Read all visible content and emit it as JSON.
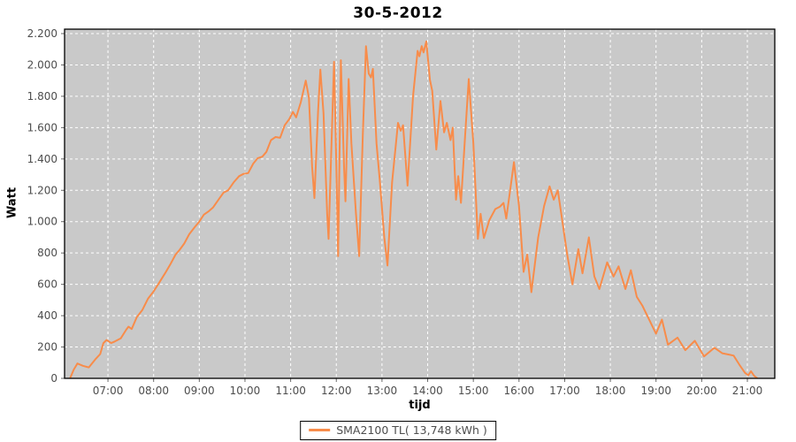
{
  "title": "30-5-2012",
  "axes": {
    "x_label": "tijd",
    "y_label": "Watt"
  },
  "legend": {
    "label": "SMA2100 TL( 13,748 kWh )"
  },
  "colors": {
    "page_bg": "#ffffff",
    "plot_bg": "#c9c9c9",
    "grid": "#ffffff",
    "series": "#f88c4a",
    "plot_border": "#000000",
    "tick_mark": "#666666",
    "tick_text": "#4d4d4d",
    "title_text": "#000000"
  },
  "chart_data": {
    "type": "line",
    "title": "30-5-2012",
    "xlabel": "tijd",
    "ylabel": "Watt",
    "xlim": [
      6.05,
      21.6
    ],
    "ylim": [
      0,
      2200
    ],
    "grid": true,
    "grid_style": "dashed-white",
    "legend_position": "bottom-center",
    "x_ticks": [
      {
        "value": 7,
        "label": "07:00"
      },
      {
        "value": 8,
        "label": "08:00"
      },
      {
        "value": 9,
        "label": "09:00"
      },
      {
        "value": 10,
        "label": "10:00"
      },
      {
        "value": 11,
        "label": "11:00"
      },
      {
        "value": 12,
        "label": "12:00"
      },
      {
        "value": 13,
        "label": "13:00"
      },
      {
        "value": 14,
        "label": "14:00"
      },
      {
        "value": 15,
        "label": "15:00"
      },
      {
        "value": 16,
        "label": "16:00"
      },
      {
        "value": 17,
        "label": "17:00"
      },
      {
        "value": 18,
        "label": "18:00"
      },
      {
        "value": 19,
        "label": "19:00"
      },
      {
        "value": 20,
        "label": "20:00"
      },
      {
        "value": 21,
        "label": "21:00"
      }
    ],
    "y_ticks": [
      {
        "value": 0,
        "label": "0"
      },
      {
        "value": 200,
        "label": "200"
      },
      {
        "value": 400,
        "label": "400"
      },
      {
        "value": 600,
        "label": "600"
      },
      {
        "value": 800,
        "label": "800"
      },
      {
        "value": 1000,
        "label": "1.000"
      },
      {
        "value": 1200,
        "label": "1.200"
      },
      {
        "value": 1400,
        "label": "1.400"
      },
      {
        "value": 1600,
        "label": "1.600"
      },
      {
        "value": 1800,
        "label": "1.800"
      },
      {
        "value": 2000,
        "label": "2.000"
      },
      {
        "value": 2200,
        "label": "2.200"
      }
    ],
    "series": [
      {
        "name": "SMA2100 TL( 13,748 kWh )",
        "color": "#f88c4a",
        "points": [
          [
            6.17,
            0
          ],
          [
            6.25,
            55
          ],
          [
            6.33,
            95
          ],
          [
            6.45,
            80
          ],
          [
            6.58,
            70
          ],
          [
            6.72,
            120
          ],
          [
            6.83,
            155
          ],
          [
            6.9,
            225
          ],
          [
            6.97,
            245
          ],
          [
            7.07,
            225
          ],
          [
            7.15,
            235
          ],
          [
            7.28,
            255
          ],
          [
            7.4,
            310
          ],
          [
            7.45,
            330
          ],
          [
            7.52,
            315
          ],
          [
            7.63,
            390
          ],
          [
            7.75,
            435
          ],
          [
            7.88,
            510
          ],
          [
            8,
            555
          ],
          [
            8.12,
            610
          ],
          [
            8.25,
            670
          ],
          [
            8.37,
            730
          ],
          [
            8.48,
            790
          ],
          [
            8.57,
            820
          ],
          [
            8.67,
            860
          ],
          [
            8.78,
            920
          ],
          [
            8.9,
            965
          ],
          [
            9,
            1000
          ],
          [
            9.1,
            1045
          ],
          [
            9.2,
            1065
          ],
          [
            9.3,
            1090
          ],
          [
            9.42,
            1140
          ],
          [
            9.53,
            1185
          ],
          [
            9.63,
            1200
          ],
          [
            9.75,
            1250
          ],
          [
            9.87,
            1290
          ],
          [
            9.97,
            1305
          ],
          [
            10.07,
            1310
          ],
          [
            10.18,
            1370
          ],
          [
            10.28,
            1405
          ],
          [
            10.38,
            1415
          ],
          [
            10.47,
            1445
          ],
          [
            10.57,
            1520
          ],
          [
            10.67,
            1540
          ],
          [
            10.77,
            1535
          ],
          [
            10.87,
            1615
          ],
          [
            10.97,
            1655
          ],
          [
            11.05,
            1700
          ],
          [
            11.12,
            1665
          ],
          [
            11.22,
            1760
          ],
          [
            11.33,
            1900
          ],
          [
            11.4,
            1790
          ],
          [
            11.47,
            1350
          ],
          [
            11.52,
            1150
          ],
          [
            11.6,
            1700
          ],
          [
            11.65,
            1970
          ],
          [
            11.72,
            1690
          ],
          [
            11.8,
            1050
          ],
          [
            11.83,
            890
          ],
          [
            11.9,
            1550
          ],
          [
            11.95,
            2020
          ],
          [
            12,
            1350
          ],
          [
            12.04,
            780
          ],
          [
            12.1,
            2030
          ],
          [
            12.17,
            1350
          ],
          [
            12.2,
            1130
          ],
          [
            12.27,
            1910
          ],
          [
            12.33,
            1500
          ],
          [
            12.43,
            1050
          ],
          [
            12.5,
            780
          ],
          [
            12.58,
            1550
          ],
          [
            12.65,
            2120
          ],
          [
            12.71,
            1945
          ],
          [
            12.76,
            1920
          ],
          [
            12.8,
            1975
          ],
          [
            12.88,
            1500
          ],
          [
            12.95,
            1270
          ],
          [
            13.05,
            900
          ],
          [
            13.12,
            720
          ],
          [
            13.22,
            1250
          ],
          [
            13.35,
            1630
          ],
          [
            13.41,
            1580
          ],
          [
            13.46,
            1615
          ],
          [
            13.56,
            1230
          ],
          [
            13.68,
            1800
          ],
          [
            13.78,
            2090
          ],
          [
            13.82,
            2055
          ],
          [
            13.87,
            2120
          ],
          [
            13.91,
            2080
          ],
          [
            13.97,
            2150
          ],
          [
            14.05,
            1905
          ],
          [
            14.1,
            1835
          ],
          [
            14.19,
            1460
          ],
          [
            14.28,
            1770
          ],
          [
            14.36,
            1570
          ],
          [
            14.42,
            1630
          ],
          [
            14.5,
            1520
          ],
          [
            14.55,
            1600
          ],
          [
            14.62,
            1140
          ],
          [
            14.67,
            1290
          ],
          [
            14.73,
            1120
          ],
          [
            14.82,
            1550
          ],
          [
            14.9,
            1910
          ],
          [
            15,
            1500
          ],
          [
            15.1,
            890
          ],
          [
            15.16,
            1050
          ],
          [
            15.23,
            895
          ],
          [
            15.35,
            1010
          ],
          [
            15.48,
            1080
          ],
          [
            15.58,
            1095
          ],
          [
            15.66,
            1120
          ],
          [
            15.72,
            1020
          ],
          [
            15.82,
            1230
          ],
          [
            15.89,
            1380
          ],
          [
            16,
            1100
          ],
          [
            16.1,
            680
          ],
          [
            16.18,
            790
          ],
          [
            16.27,
            550
          ],
          [
            16.42,
            900
          ],
          [
            16.55,
            1100
          ],
          [
            16.67,
            1225
          ],
          [
            16.76,
            1140
          ],
          [
            16.85,
            1200
          ],
          [
            16.95,
            1000
          ],
          [
            17.05,
            800
          ],
          [
            17.17,
            600
          ],
          [
            17.3,
            825
          ],
          [
            17.39,
            670
          ],
          [
            17.53,
            900
          ],
          [
            17.65,
            650
          ],
          [
            17.76,
            570
          ],
          [
            17.93,
            740
          ],
          [
            18.07,
            650
          ],
          [
            18.18,
            715
          ],
          [
            18.33,
            570
          ],
          [
            18.45,
            690
          ],
          [
            18.58,
            520
          ],
          [
            18.7,
            465
          ],
          [
            18.84,
            380
          ],
          [
            19,
            285
          ],
          [
            19.13,
            375
          ],
          [
            19.26,
            215
          ],
          [
            19.47,
            260
          ],
          [
            19.64,
            180
          ],
          [
            19.85,
            240
          ],
          [
            20.05,
            140
          ],
          [
            20.28,
            195
          ],
          [
            20.45,
            160
          ],
          [
            20.62,
            150
          ],
          [
            20.7,
            145
          ],
          [
            20.83,
            85
          ],
          [
            20.95,
            35
          ],
          [
            21.02,
            20
          ],
          [
            21.08,
            45
          ],
          [
            21.15,
            15
          ],
          [
            21.22,
            0
          ]
        ]
      }
    ]
  }
}
